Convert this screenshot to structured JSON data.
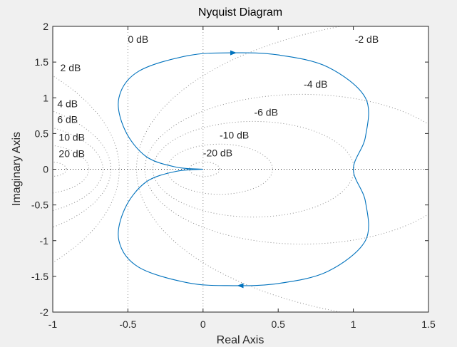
{
  "chart_data": {
    "type": "line",
    "title": "Nyquist Diagram",
    "xlabel": "Real Axis",
    "ylabel": "Imaginary Axis",
    "xlim": [
      -1,
      1.5
    ],
    "ylim": [
      -2,
      2
    ],
    "xticks": [
      -1,
      -0.5,
      0,
      0.5,
      1,
      1.5
    ],
    "yticks": [
      -2,
      -1.5,
      -1,
      -0.5,
      0,
      0.5,
      1,
      1.5,
      2
    ],
    "xtick_labels": [
      "-1",
      "-0.5",
      "0",
      "0.5",
      "1",
      "1.5"
    ],
    "ytick_labels": [
      "-2",
      "-1.5",
      "-1",
      "-0.5",
      "0",
      "0.5",
      "1",
      "1.5",
      "2"
    ],
    "grid": "M-circles (constant closed-loop magnitude)",
    "critical_point": [
      -1,
      0
    ],
    "m_circle_labels": [
      {
        "text": "0 dB",
        "x": -0.5,
        "y": 1.77
      },
      {
        "text": "-2 dB",
        "x": 1.01,
        "y": 1.77
      },
      {
        "text": "2 dB",
        "x": -0.95,
        "y": 1.37
      },
      {
        "text": "-4 dB",
        "x": 0.67,
        "y": 1.14
      },
      {
        "text": "4 dB",
        "x": -0.97,
        "y": 0.87
      },
      {
        "text": "-6 dB",
        "x": 0.34,
        "y": 0.75
      },
      {
        "text": "6 dB",
        "x": -0.97,
        "y": 0.65
      },
      {
        "text": "-10 dB",
        "x": 0.11,
        "y": 0.43
      },
      {
        "text": "10 dB",
        "x": -0.96,
        "y": 0.4
      },
      {
        "text": "-20 dB",
        "x": 0,
        "y": 0.18
      },
      {
        "text": "20 dB",
        "x": -0.96,
        "y": 0.17
      }
    ],
    "m_circles_db": [
      20,
      10,
      6,
      4,
      2,
      0,
      -2,
      -4,
      -6,
      -10,
      -20
    ],
    "series": [
      {
        "color": "#0072bd",
        "points": [
          [
            0,
            0
          ],
          [
            -0.18,
            0.03
          ],
          [
            -0.38,
            0.18
          ],
          [
            -0.52,
            0.55
          ],
          [
            -0.56,
            1.0
          ],
          [
            -0.43,
            1.37
          ],
          [
            -0.1,
            1.59
          ],
          [
            0.2,
            1.63
          ],
          [
            0.5,
            1.6
          ],
          [
            0.83,
            1.43
          ],
          [
            1.08,
            1.0
          ],
          [
            1.08,
            0.45
          ],
          [
            1.0,
            0.0
          ],
          [
            1.08,
            -0.45
          ],
          [
            1.08,
            -1.0
          ],
          [
            0.83,
            -1.43
          ],
          [
            0.5,
            -1.6
          ],
          [
            0.2,
            -1.63
          ],
          [
            -0.1,
            -1.59
          ],
          [
            -0.43,
            -1.37
          ],
          [
            -0.56,
            -1.0
          ],
          [
            -0.52,
            -0.55
          ],
          [
            -0.38,
            -0.18
          ],
          [
            -0.18,
            -0.03
          ],
          [
            0,
            0
          ]
        ],
        "arrows": [
          {
            "x": 0.2,
            "y": 1.63,
            "direction": "right"
          },
          {
            "x": 0.25,
            "y": -1.63,
            "direction": "left"
          }
        ]
      }
    ]
  }
}
